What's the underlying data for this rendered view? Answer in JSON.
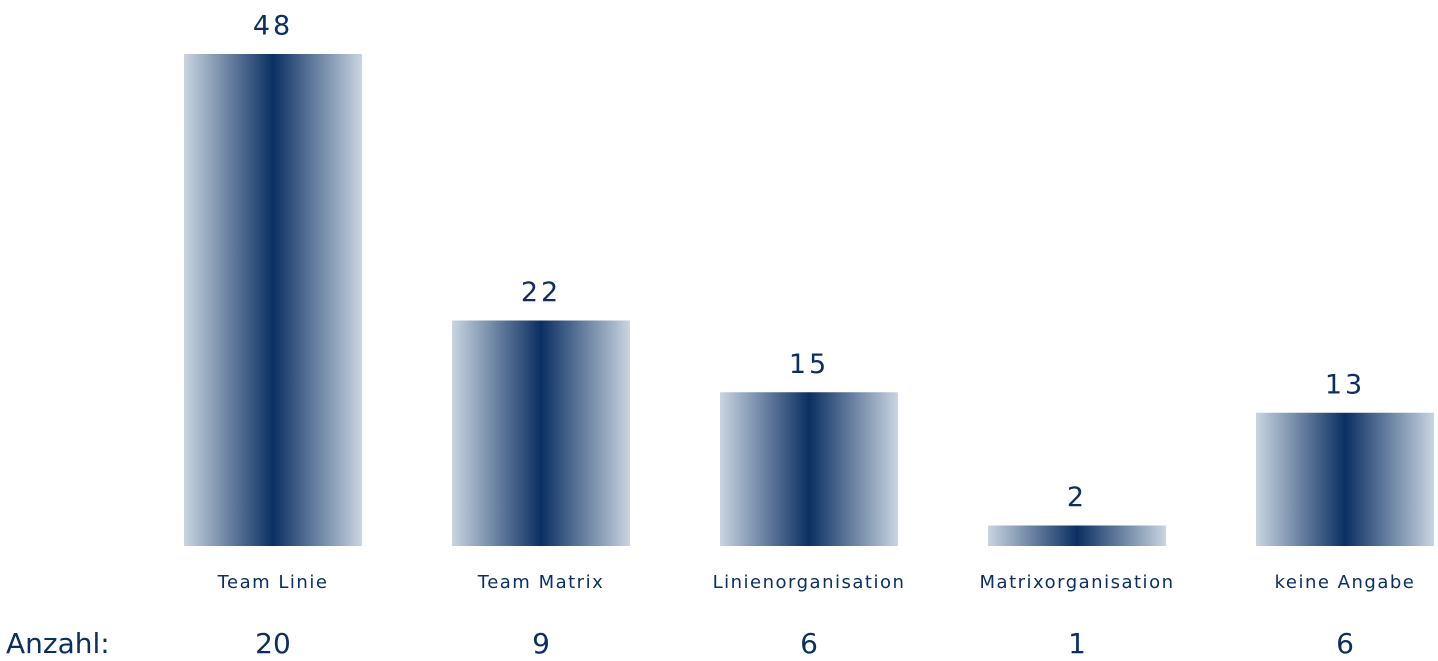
{
  "chart_data": {
    "type": "bar",
    "categories": [
      "Team Linie",
      "Team Matrix",
      "Linienorganisation",
      "Matrixorganisation",
      "keine Angabe"
    ],
    "values": [
      48,
      22,
      15,
      2,
      13
    ],
    "color": "#0b2f62",
    "edge_color": "#c9d5e1",
    "counts_label": "Anzahl:",
    "counts": [
      20,
      9,
      6,
      1,
      6
    ]
  }
}
